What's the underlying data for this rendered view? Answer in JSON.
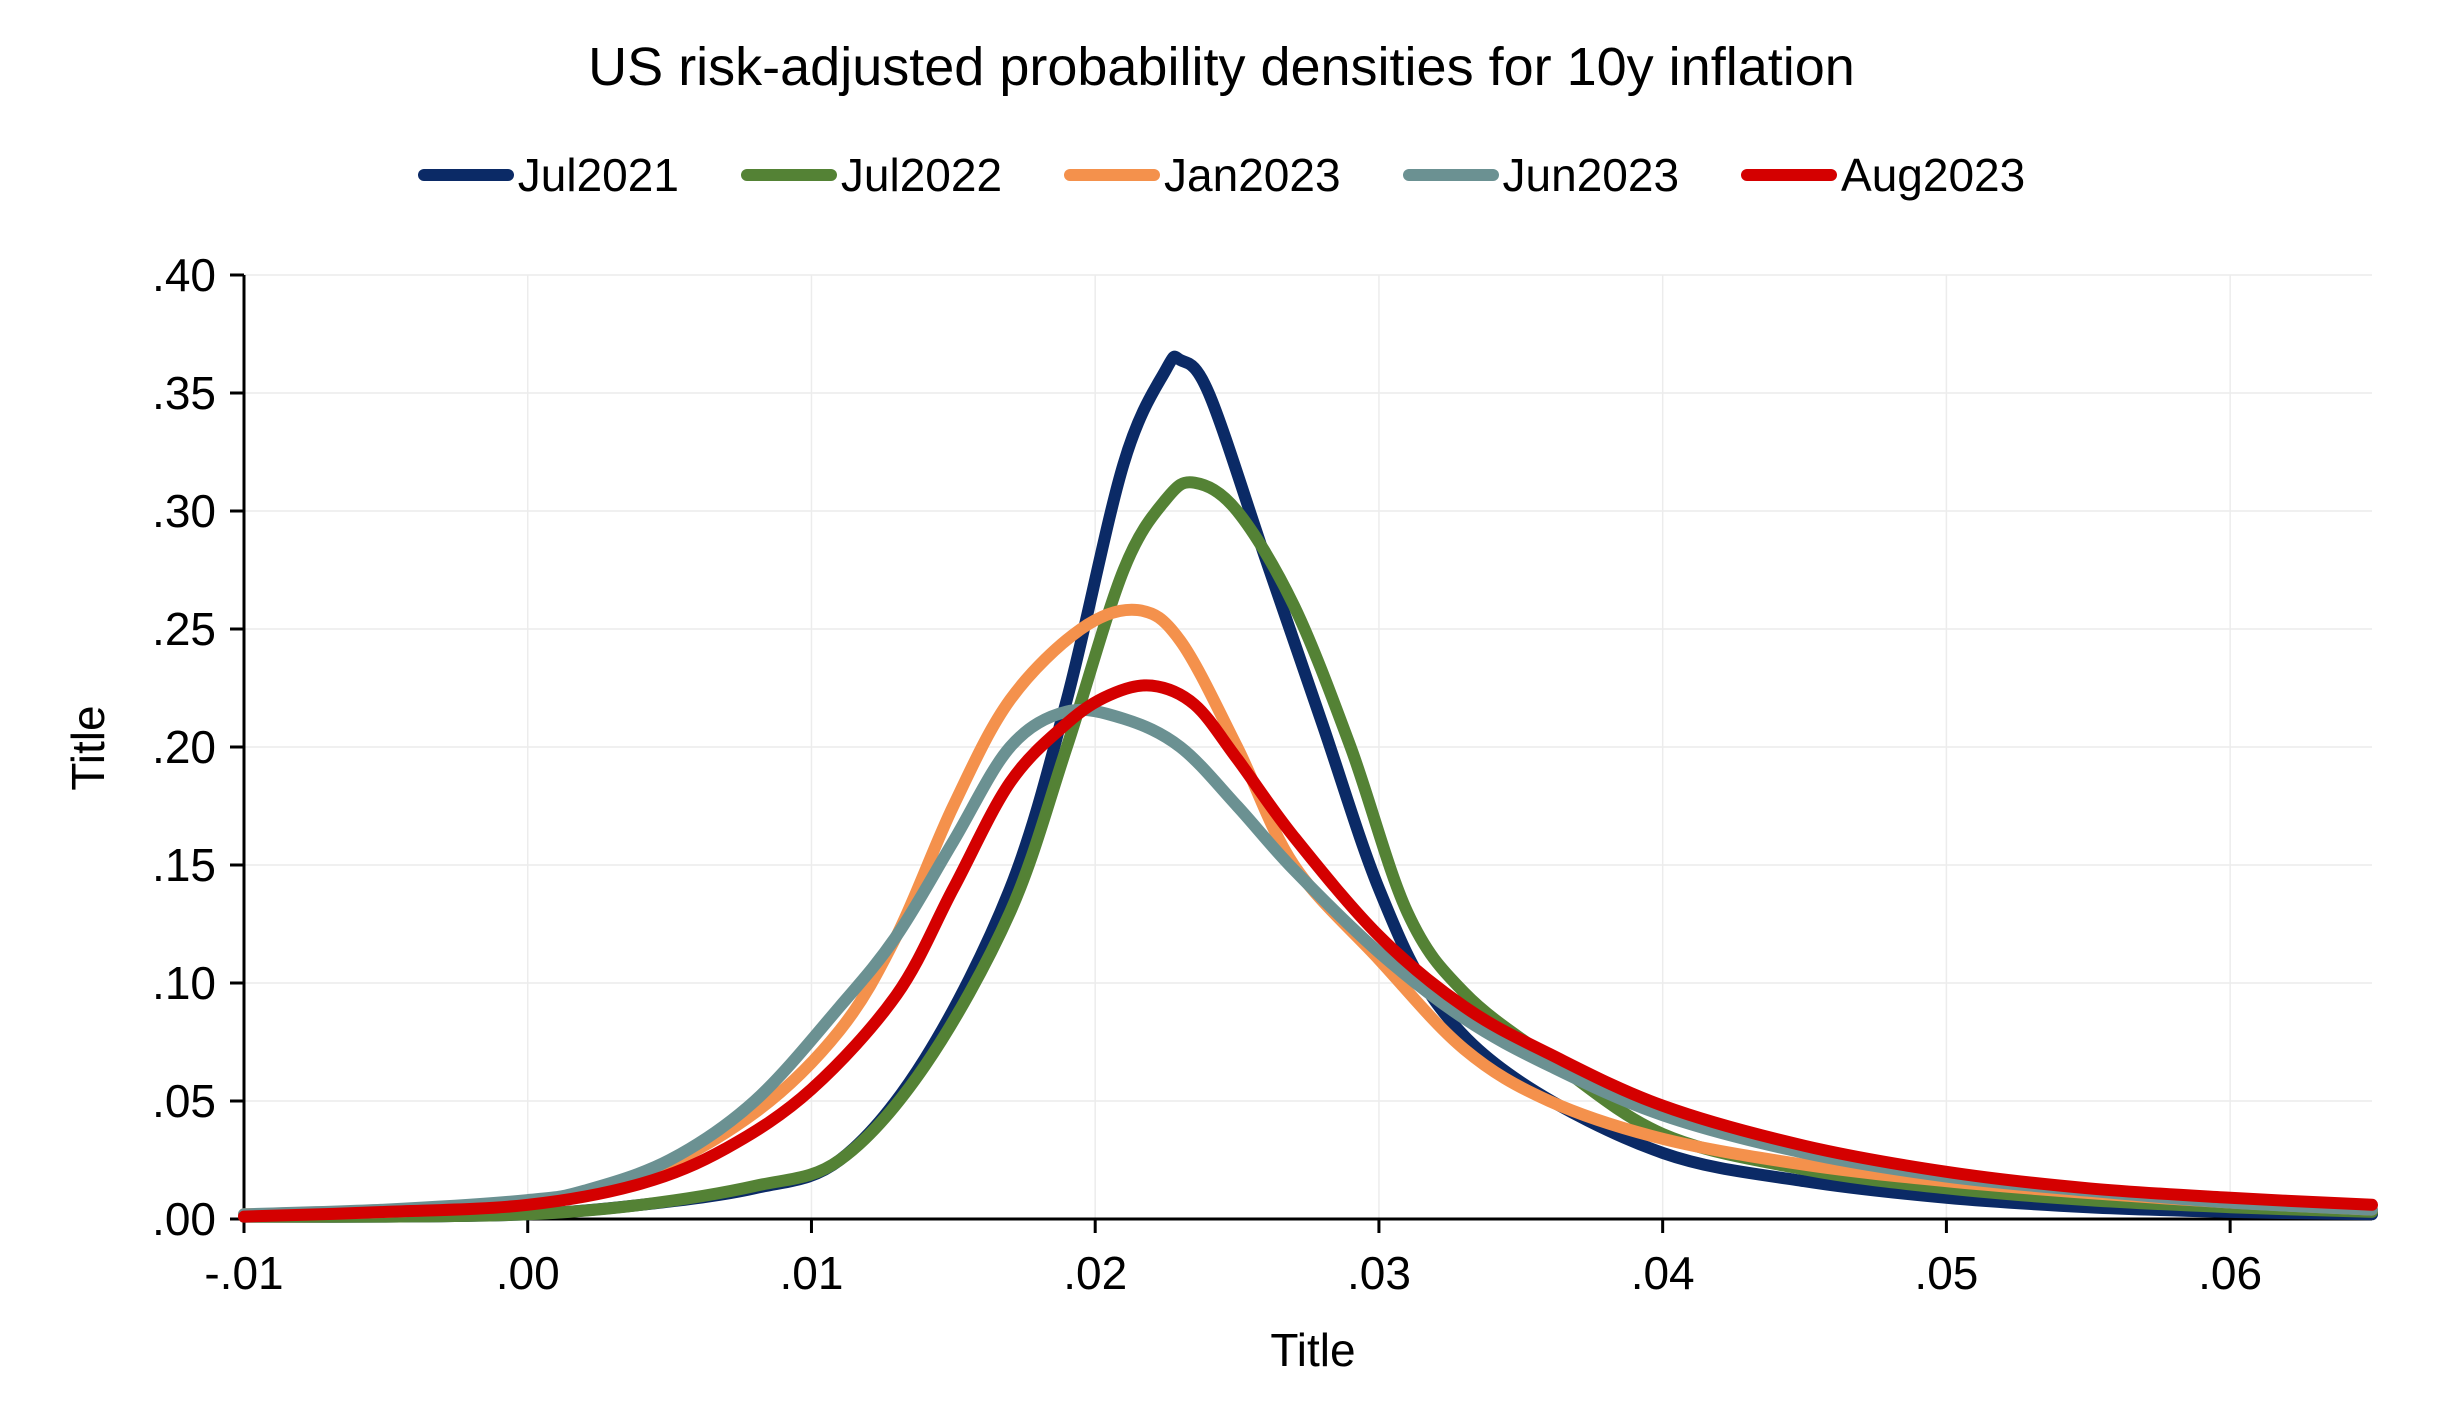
{
  "chart_data": {
    "type": "line",
    "title": "US risk-adjusted probability densities for 10y inflation",
    "xlabel": "Title",
    "ylabel": "Title",
    "xlim": [
      -0.01,
      0.065
    ],
    "ylim": [
      0,
      0.4
    ],
    "grid": true,
    "legend_position": "top",
    "x_ticks": [
      -0.01,
      0.0,
      0.01,
      0.02,
      0.03,
      0.04,
      0.05,
      0.06
    ],
    "x_tick_labels": [
      "-.01",
      ".00",
      ".01",
      ".02",
      ".03",
      ".04",
      ".05",
      ".06"
    ],
    "y_ticks": [
      0.0,
      0.05,
      0.1,
      0.15,
      0.2,
      0.25,
      0.3,
      0.35,
      0.4
    ],
    "y_tick_labels": [
      ".00",
      ".05",
      ".10",
      ".15",
      ".20",
      ".25",
      ".30",
      ".35",
      ".40"
    ],
    "series": [
      {
        "name": "Jul2021",
        "color": "#0b2a66",
        "x": [
          -0.01,
          -0.005,
          0.0,
          0.004,
          0.008,
          0.011,
          0.014,
          0.017,
          0.019,
          0.021,
          0.0225,
          0.023,
          0.024,
          0.026,
          0.028,
          0.03,
          0.032,
          0.035,
          0.04,
          0.045,
          0.05,
          0.055,
          0.06,
          0.065
        ],
        "y": [
          0.001,
          0.001,
          0.002,
          0.006,
          0.013,
          0.025,
          0.068,
          0.14,
          0.22,
          0.32,
          0.36,
          0.364,
          0.35,
          0.28,
          0.21,
          0.14,
          0.092,
          0.058,
          0.028,
          0.016,
          0.009,
          0.005,
          0.003,
          0.002
        ]
      },
      {
        "name": "Jul2022",
        "color": "#548235",
        "x": [
          -0.01,
          -0.005,
          0.0,
          0.004,
          0.008,
          0.011,
          0.014,
          0.017,
          0.019,
          0.021,
          0.0225,
          0.0235,
          0.025,
          0.027,
          0.029,
          0.031,
          0.033,
          0.036,
          0.04,
          0.045,
          0.05,
          0.055,
          0.06,
          0.065
        ],
        "y": [
          0.001,
          0.001,
          0.002,
          0.006,
          0.014,
          0.025,
          0.065,
          0.13,
          0.2,
          0.275,
          0.305,
          0.312,
          0.3,
          0.26,
          0.2,
          0.13,
          0.096,
          0.068,
          0.036,
          0.021,
          0.013,
          0.008,
          0.005,
          0.003
        ]
      },
      {
        "name": "Jan2023",
        "color": "#f4914c",
        "x": [
          -0.01,
          -0.005,
          0.0,
          0.004,
          0.008,
          0.011,
          0.013,
          0.015,
          0.017,
          0.0195,
          0.0215,
          0.023,
          0.025,
          0.027,
          0.03,
          0.033,
          0.036,
          0.04,
          0.045,
          0.05,
          0.055,
          0.06,
          0.065
        ],
        "y": [
          0.002,
          0.003,
          0.007,
          0.018,
          0.045,
          0.08,
          0.12,
          0.175,
          0.22,
          0.25,
          0.258,
          0.245,
          0.2,
          0.15,
          0.11,
          0.072,
          0.05,
          0.034,
          0.023,
          0.016,
          0.011,
          0.007,
          0.004
        ]
      },
      {
        "name": "Jun2023",
        "color": "#6b9192",
        "x": [
          -0.01,
          -0.005,
          0.0,
          0.002,
          0.005,
          0.008,
          0.011,
          0.013,
          0.015,
          0.017,
          0.019,
          0.021,
          0.023,
          0.025,
          0.027,
          0.03,
          0.033,
          0.036,
          0.04,
          0.045,
          0.05,
          0.055,
          0.06,
          0.065
        ],
        "y": [
          0.002,
          0.004,
          0.008,
          0.012,
          0.025,
          0.05,
          0.09,
          0.12,
          0.16,
          0.2,
          0.215,
          0.212,
          0.2,
          0.175,
          0.148,
          0.113,
          0.085,
          0.065,
          0.044,
          0.028,
          0.018,
          0.012,
          0.007,
          0.004
        ]
      },
      {
        "name": "Aug2023",
        "color": "#d40000",
        "x": [
          -0.01,
          -0.005,
          0.0,
          0.004,
          0.007,
          0.01,
          0.013,
          0.015,
          0.017,
          0.019,
          0.0205,
          0.022,
          0.0235,
          0.025,
          0.027,
          0.03,
          0.033,
          0.036,
          0.04,
          0.045,
          0.05,
          0.055,
          0.06,
          0.065
        ],
        "y": [
          0.001,
          0.003,
          0.006,
          0.015,
          0.03,
          0.055,
          0.095,
          0.14,
          0.185,
          0.21,
          0.222,
          0.226,
          0.218,
          0.195,
          0.162,
          0.12,
          0.09,
          0.07,
          0.048,
          0.031,
          0.02,
          0.013,
          0.009,
          0.006
        ]
      }
    ]
  }
}
